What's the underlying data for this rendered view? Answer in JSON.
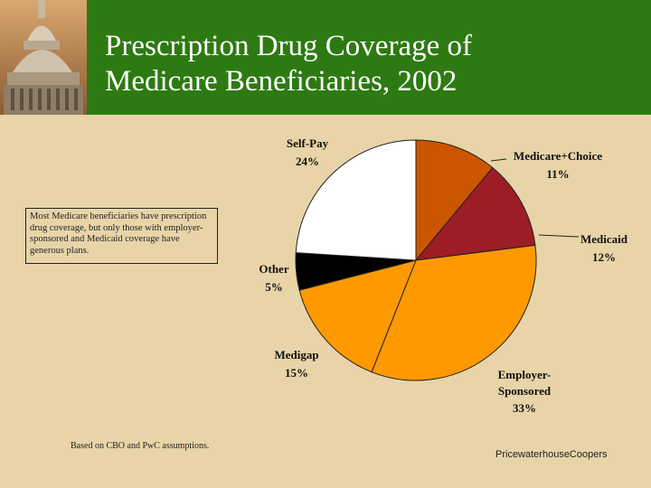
{
  "header": {
    "title_line1": "Prescription Drug Coverage of",
    "title_line2": "Medicare Beneficiaries, 2002"
  },
  "note": "Most Medicare beneficiaries have prescription drug coverage, but only those with employer-sponsored and Medicaid coverage have generous plans.",
  "footer": {
    "source": "Based on CBO and PwC assumptions.",
    "firm": "PricewaterhouseCoopers"
  },
  "chart_data": {
    "type": "pie",
    "title": "",
    "series": [
      {
        "name": "Medicare+Choice",
        "value": 11,
        "label": "11%",
        "color": "#cc5500"
      },
      {
        "name": "Medicaid",
        "value": 12,
        "label": "12%",
        "color": "#9c1d26"
      },
      {
        "name": "Employer-Sponsored",
        "value": 33,
        "label": "33%",
        "color": "#ff9900"
      },
      {
        "name": "Medigap",
        "value": 15,
        "label": "15%",
        "color": "#ff9900"
      },
      {
        "name": "Other",
        "value": 5,
        "label": "5%",
        "color": "#000000"
      },
      {
        "name": "Self-Pay",
        "value": 24,
        "label": "24%",
        "color": "#ffffff"
      }
    ]
  }
}
